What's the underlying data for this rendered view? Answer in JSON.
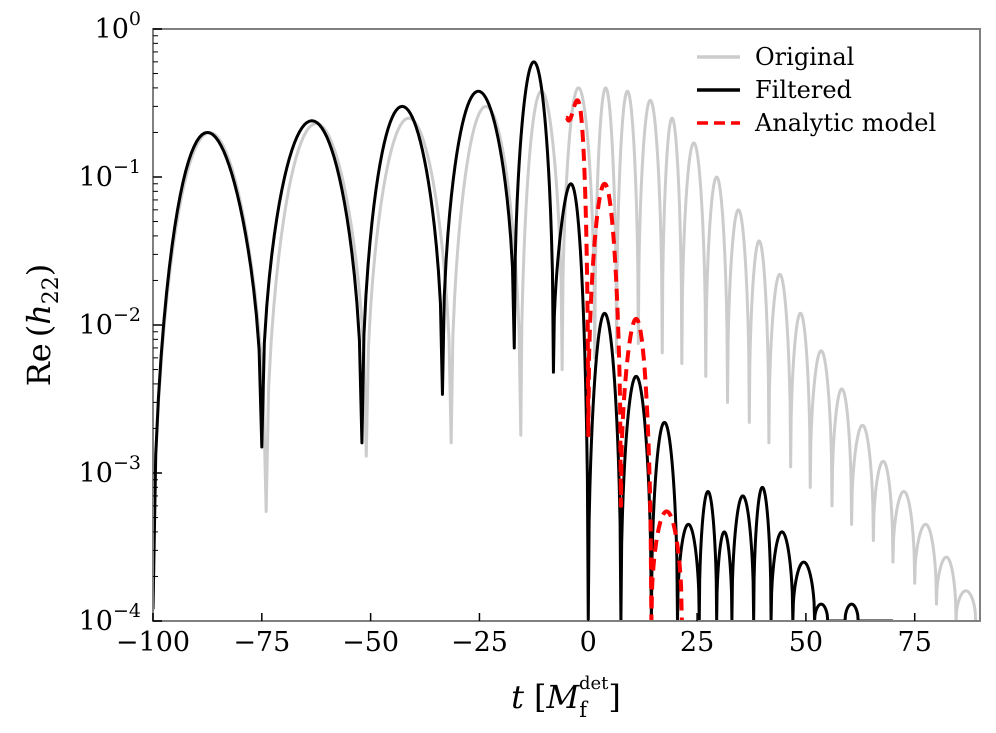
{
  "chart_data": {
    "type": "line",
    "title": "",
    "xlabel": "t [M_f^det]",
    "ylabel": "Re (h_22)",
    "xlim": [
      -100,
      90
    ],
    "ylim": [
      0.0001,
      1
    ],
    "yscale": "log",
    "grid": false,
    "legend_position": "top-right",
    "x_ticks": [
      -100,
      -75,
      -50,
      -25,
      0,
      25,
      50,
      75
    ],
    "x_tick_labels": [
      "−100",
      "−75",
      "−50",
      "−25",
      "0",
      "25",
      "50",
      "75"
    ],
    "y_ticks": [
      0.0001,
      0.001,
      0.01,
      0.1,
      1
    ],
    "y_tick_labels": [
      {
        "base": "10",
        "exp": "−4"
      },
      {
        "base": "10",
        "exp": "−3"
      },
      {
        "base": "10",
        "exp": "−2"
      },
      {
        "base": "10",
        "exp": "−1"
      },
      {
        "base": "10",
        "exp": "0"
      }
    ],
    "xlabel_parts": {
      "var": "t",
      "sym": "M",
      "sub": "f",
      "sup": "det"
    },
    "ylabel_parts": {
      "text": "Re",
      "var": "h",
      "sub": "22"
    },
    "series": [
      {
        "name": "Original",
        "color": "#cccccc",
        "style": "solid",
        "zeros": [
          -100,
          -74,
          -51,
          -31.5,
          -15.5,
          -6,
          1.5,
          6.5,
          11.5,
          17,
          21.5,
          27,
          32,
          37,
          41.5,
          46.5,
          51,
          56,
          60.5,
          65.5,
          70,
          75,
          80,
          84.5,
          89
        ],
        "peaks": [
          0.2,
          0.23,
          0.25,
          0.3,
          0.38,
          0.4,
          0.4,
          0.38,
          0.33,
          0.25,
          0.17,
          0.1,
          0.06,
          0.037,
          0.022,
          0.012,
          0.0067,
          0.0037,
          0.0021,
          0.0012,
          0.00075,
          0.00045,
          0.00027,
          0.00016
        ],
        "dips": [
          0.00012,
          0.00055,
          0.0013,
          0.0016,
          0.0018,
          0.005,
          0.006,
          0.0065,
          0.0075,
          0.0065,
          0.0055,
          0.0045,
          0.003,
          0.0022,
          0.0016,
          0.0011,
          0.0008,
          0.0006,
          0.00045,
          0.00035,
          0.00025,
          0.00018,
          0.00013,
          0.0001,
          0.0001
        ]
      },
      {
        "name": "Filtered",
        "color": "#000000",
        "style": "solid",
        "zeros": [
          -100,
          -75,
          -52,
          -33.5,
          -17,
          -8,
          0,
          7.5,
          14.5,
          20.5,
          25.5,
          29.5,
          33,
          38,
          42,
          47,
          52,
          55,
          59,
          62,
          66,
          70
        ],
        "peaks": [
          0.2,
          0.24,
          0.3,
          0.38,
          0.6,
          0.09,
          0.012,
          0.0045,
          0.0022,
          0.00045,
          0.00075,
          0.0004,
          0.0007,
          0.0008,
          0.0004,
          0.00025,
          0.00013,
          0.0001,
          0.00013,
          0.0001,
          0.0001
        ],
        "dips": [
          0.00012,
          0.0015,
          0.0016,
          0.0034,
          0.007,
          0.0048,
          0.0001,
          0.0001,
          0.0001,
          0.0001,
          0.0001,
          0.0001,
          0.0001,
          0.0001,
          0.0001,
          0.0001,
          0.0001,
          0.0001,
          0.0001,
          0.0001,
          0.0001,
          0.0001
        ]
      },
      {
        "name": "Analytic model",
        "color": "#ff0000",
        "style": "dashed",
        "zeros": [
          -5,
          0,
          7.5,
          14.5,
          21.5
        ],
        "peaks": [
          0.33,
          0.09,
          0.011,
          0.00055
        ],
        "dips": [
          0.25,
          0.0018,
          0.0006,
          0.0001,
          0.0001
        ]
      }
    ]
  }
}
